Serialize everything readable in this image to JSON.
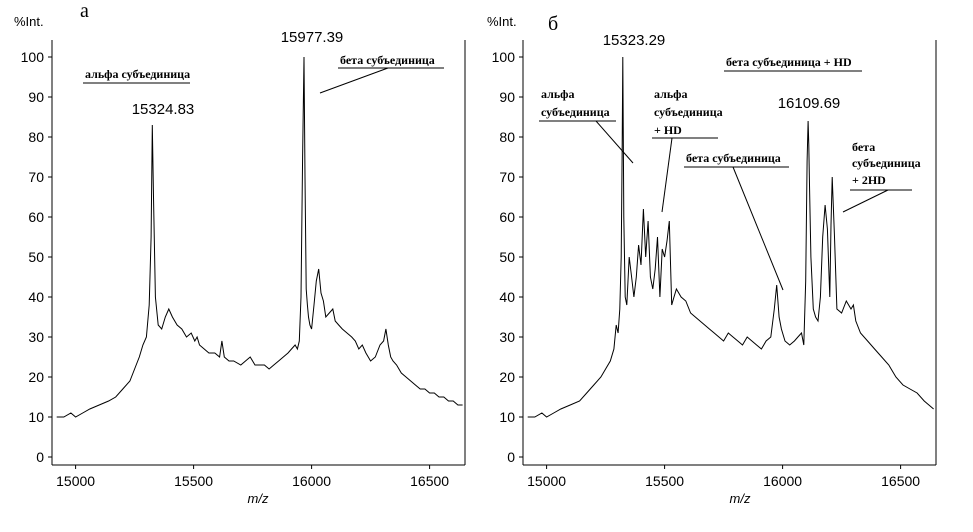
{
  "chart_data": [
    {
      "type": "line",
      "panel": "а",
      "ylabel": "%Int.",
      "xlabel": "m/z",
      "xlim": [
        14900,
        16650
      ],
      "ylim": [
        0,
        100
      ],
      "x_ticks": [
        15000,
        15500,
        16000,
        16500
      ],
      "y_ticks": [
        0,
        10,
        20,
        30,
        40,
        50,
        60,
        70,
        80,
        90,
        100
      ],
      "grid": false,
      "legend": "none",
      "peak_labels": [
        {
          "text": "15324.83",
          "x": 15325,
          "y": 83
        },
        {
          "text": "15977.39",
          "x": 15977,
          "y": 100
        }
      ],
      "annotations": [
        {
          "text": "альфа субъединица",
          "points_to": {
            "x": 15325,
            "y": 83
          }
        },
        {
          "text": "бета субъединица",
          "points_to": {
            "x": 15977,
            "y": 90
          }
        }
      ],
      "series": [
        {
          "x": [
            14920,
            14950,
            14980,
            15000,
            15030,
            15060,
            15100,
            15140,
            15170,
            15200,
            15230,
            15250,
            15270,
            15285,
            15300,
            15312,
            15320,
            15325,
            15330,
            15338,
            15350,
            15365,
            15380,
            15395,
            15410,
            15430,
            15450,
            15470,
            15490,
            15505,
            15515,
            15525,
            15545,
            15565,
            15590,
            15610,
            15620,
            15630,
            15650,
            15670,
            15700,
            15720,
            15740,
            15760,
            15780,
            15800,
            15820,
            15840,
            15860,
            15880,
            15900,
            15915,
            15930,
            15940,
            15948,
            15955,
            15962,
            15968,
            15972,
            15977,
            15982,
            15987,
            15993,
            16000,
            16010,
            16020,
            16030,
            16040,
            16050,
            16060,
            16075,
            16090,
            16100,
            16115,
            16130,
            16150,
            16170,
            16185,
            16200,
            16215,
            16230,
            16250,
            16270,
            16290,
            16305,
            16315,
            16325,
            16335,
            16345,
            16360,
            16380,
            16400,
            16420,
            16440,
            16460,
            16480,
            16500,
            16520,
            16540,
            16560,
            16580,
            16600,
            16620,
            16640
          ],
          "y": [
            10,
            10,
            11,
            10,
            11,
            12,
            13,
            14,
            15,
            17,
            19,
            22,
            25,
            28,
            30,
            38,
            55,
            83,
            65,
            40,
            33,
            32,
            35,
            37,
            35,
            33,
            32,
            30,
            31,
            29,
            30,
            28,
            27,
            26,
            26,
            25,
            29,
            25,
            24,
            24,
            23,
            24,
            25,
            23,
            23,
            23,
            22,
            23,
            24,
            25,
            26,
            27,
            28,
            27,
            29,
            40,
            75,
            100,
            70,
            42,
            38,
            35,
            33,
            32,
            38,
            44,
            47,
            41,
            39,
            35,
            36,
            37,
            34,
            33,
            32,
            31,
            30,
            29,
            27,
            28,
            26,
            24,
            25,
            28,
            29,
            32,
            28,
            25,
            24,
            23,
            21,
            20,
            19,
            18,
            17,
            17,
            16,
            16,
            15,
            15,
            14,
            14,
            13,
            13
          ]
        }
      ]
    },
    {
      "type": "line",
      "panel": "б",
      "ylabel": "%Int.",
      "xlabel": "m/z",
      "xlim": [
        14900,
        16650
      ],
      "ylim": [
        0,
        100
      ],
      "x_ticks": [
        15000,
        15500,
        16000,
        16500
      ],
      "y_ticks": [
        0,
        10,
        20,
        30,
        40,
        50,
        60,
        70,
        80,
        90,
        100
      ],
      "grid": false,
      "legend": "none",
      "peak_labels": [
        {
          "text": "15323.29",
          "x": 15323,
          "y": 100
        },
        {
          "text": "16109.69",
          "x": 16110,
          "y": 84
        }
      ],
      "annotations": [
        {
          "text": "альфа субъединица",
          "points_to": {
            "x": 15323,
            "y": 70
          }
        },
        {
          "text": "альфа субъединица + HD",
          "points_to": {
            "x": 15445,
            "y": 60
          }
        },
        {
          "text": "бета субъединица",
          "points_to": {
            "x": 15975,
            "y": 41
          }
        },
        {
          "text": "бета субъединица + HD",
          "points_to": {
            "x": 16110,
            "y": 84
          }
        },
        {
          "text": "бета субъединица + 2HD",
          "points_to": {
            "x": 16205,
            "y": 58
          }
        }
      ],
      "series": [
        {
          "x": [
            14920,
            14950,
            14980,
            15000,
            15030,
            15060,
            15100,
            15140,
            15170,
            15200,
            15230,
            15250,
            15270,
            15285,
            15295,
            15303,
            15310,
            15316,
            15320,
            15323,
            15327,
            15333,
            15340,
            15350,
            15360,
            15370,
            15380,
            15390,
            15400,
            15410,
            15420,
            15430,
            15440,
            15450,
            15460,
            15470,
            15480,
            15490,
            15500,
            15510,
            15520,
            15530,
            15540,
            15550,
            15570,
            15590,
            15610,
            15630,
            15650,
            15670,
            15690,
            15710,
            15730,
            15750,
            15770,
            15790,
            15810,
            15830,
            15850,
            15870,
            15890,
            15910,
            15930,
            15950,
            15965,
            15975,
            15985,
            15995,
            16010,
            16030,
            16050,
            16065,
            16080,
            16090,
            16098,
            16104,
            16108,
            16111,
            16114,
            16120,
            16130,
            16140,
            16150,
            16160,
            16170,
            16180,
            16190,
            16200,
            16205,
            16210,
            16220,
            16230,
            16250,
            16270,
            16290,
            16300,
            16310,
            16330,
            16360,
            16390,
            16420,
            16450,
            16480,
            16510,
            16540,
            16570,
            16600,
            16620,
            16640
          ],
          "y": [
            10,
            10,
            11,
            10,
            11,
            12,
            13,
            14,
            16,
            18,
            20,
            22,
            24,
            27,
            33,
            31,
            37,
            50,
            75,
            100,
            60,
            40,
            38,
            50,
            45,
            40,
            45,
            53,
            48,
            62,
            50,
            59,
            45,
            42,
            47,
            55,
            40,
            52,
            50,
            54,
            59,
            38,
            40,
            42,
            40,
            39,
            36,
            35,
            34,
            33,
            32,
            31,
            30,
            29,
            31,
            30,
            29,
            28,
            30,
            29,
            28,
            27,
            29,
            30,
            37,
            43,
            35,
            32,
            29,
            28,
            29,
            30,
            31,
            28,
            44,
            74,
            84,
            78,
            68,
            50,
            37,
            35,
            34,
            40,
            55,
            63,
            57,
            40,
            58,
            70,
            55,
            37,
            36,
            39,
            37,
            38,
            34,
            31,
            29,
            27,
            25,
            23,
            20,
            18,
            17,
            16,
            14,
            13,
            12
          ]
        }
      ]
    }
  ]
}
